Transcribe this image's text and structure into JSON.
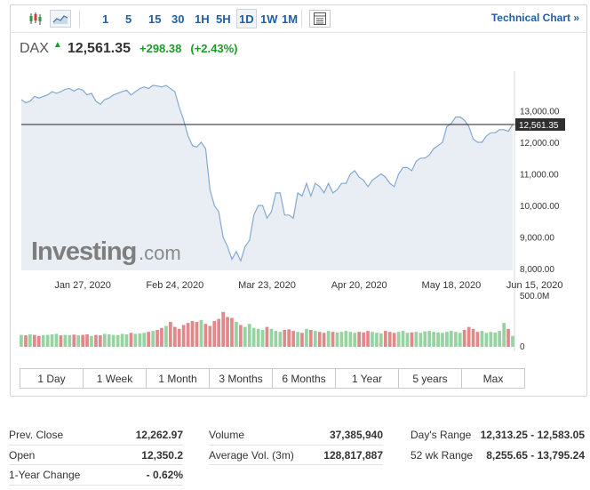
{
  "toolbar": {
    "chart_types": [
      {
        "icon": "candlestick-icon",
        "active": false
      },
      {
        "icon": "area-chart-icon",
        "active": true
      }
    ],
    "intervals": [
      "1",
      "5",
      "15",
      "30",
      "1H",
      "5H",
      "1D",
      "1W",
      "1M"
    ],
    "active_interval": "1D",
    "table_icon": "table-icon",
    "technical_chart_label": "Technical Chart »"
  },
  "quote": {
    "symbol": "DAX",
    "arrow": "▲",
    "price": "12,561.35",
    "change": "+298.38",
    "change_pct": "(+2.43%)",
    "up_color": "#1e9a2b"
  },
  "watermark": {
    "brand": "Investing",
    "suffix": ".com"
  },
  "chart_data": {
    "type": "area",
    "series": [
      {
        "values": [
          13350,
          13250,
          13300,
          13450,
          13400,
          13450,
          13500,
          13600,
          13550,
          13600,
          13680,
          13700,
          13620,
          13700,
          13650,
          13500,
          13550,
          13300,
          13200,
          13350,
          13400,
          13500,
          13550,
          13600,
          13650,
          13500,
          13600,
          13700,
          13750,
          13700,
          13800,
          13780,
          13750,
          13800,
          13700,
          13600,
          13100,
          12700,
          12200,
          11900,
          11850,
          12000,
          11800,
          10500,
          10000,
          9800,
          9000,
          8700,
          8300,
          8550,
          8250,
          8700,
          8900,
          9700,
          10000,
          10000,
          9600,
          9800,
          10400,
          10400,
          9700,
          9700,
          9600,
          10400,
          10300,
          10700,
          10300,
          10700,
          10600,
          10400,
          10700,
          10400,
          10500,
          10700,
          10700,
          11000,
          11100,
          10900,
          10800,
          10600,
          10800,
          10900,
          11000,
          10900,
          10700,
          10600,
          11000,
          11200,
          11200,
          11100,
          11400,
          11500,
          11500,
          11600,
          11800,
          11900,
          12000,
          12500,
          12600,
          12800,
          12800,
          12700,
          12500,
          12100,
          12000,
          12000,
          12200,
          12300,
          12300,
          12400,
          12400,
          12350,
          12561.35
        ]
      }
    ],
    "volume": {
      "values": [
        120,
        115,
        125,
        120,
        110,
        118,
        120,
        125,
        130,
        115,
        120,
        118,
        122,
        115,
        120,
        125,
        110,
        120,
        115,
        130,
        125,
        120,
        118,
        130,
        125,
        140,
        130,
        135,
        140,
        150,
        160,
        170,
        190,
        210,
        250,
        200,
        180,
        220,
        240,
        260,
        250,
        270,
        230,
        210,
        260,
        280,
        350,
        300,
        290,
        250,
        220,
        200,
        230,
        190,
        180,
        170,
        200,
        180,
        160,
        150,
        170,
        175,
        160,
        150,
        140,
        180,
        170,
        160,
        150,
        140,
        160,
        150,
        145,
        150,
        160,
        150,
        140,
        150,
        145,
        160,
        150,
        140,
        135,
        160,
        150,
        140,
        150,
        160,
        140,
        145,
        150,
        140,
        155,
        160,
        150,
        145,
        140,
        150,
        160,
        150,
        140,
        170,
        200,
        180,
        150,
        160,
        140,
        150,
        145,
        160,
        240,
        180,
        110
      ],
      "up_flags": [
        1,
        0,
        1,
        0,
        0,
        1,
        1,
        1,
        1,
        0,
        1,
        1,
        0,
        1,
        0,
        0,
        1,
        0,
        0,
        1,
        1,
        1,
        1,
        1,
        1,
        0,
        1,
        1,
        1,
        0,
        1,
        0,
        0,
        1,
        0,
        0,
        0,
        0,
        0,
        0,
        0,
        1,
        0,
        0,
        0,
        0,
        0,
        0,
        0,
        1,
        0,
        1,
        1,
        1,
        1,
        1,
        0,
        1,
        1,
        1,
        0,
        0,
        0,
        1,
        0,
        1,
        0,
        1,
        0,
        0,
        1,
        0,
        1,
        1,
        1,
        1,
        1,
        0,
        0,
        0,
        1,
        1,
        1,
        0,
        0,
        0,
        1,
        1,
        1,
        0,
        1,
        1,
        1,
        1,
        1,
        1,
        1,
        1,
        1,
        1,
        1,
        0,
        0,
        0,
        0,
        1,
        1,
        1,
        1,
        1,
        1,
        0,
        1
      ],
      "ymax_label": "500.0M",
      "zero_label": "0"
    },
    "yticks": [
      "13,000.00",
      "12,000.00",
      "11,000.00",
      "10,000.00",
      "9,000.00",
      "8,000.00"
    ],
    "ytick_values": [
      13000,
      12000,
      11000,
      10000,
      9000,
      8000
    ],
    "ylim": [
      7950,
      14250
    ],
    "xticks": [
      "Jan 27, 2020",
      "Feb 24, 2020",
      "Mar 23, 2020",
      "Apr 20, 2020",
      "May 18, 2020",
      "Jun 15, 2020"
    ],
    "xtick_index": [
      14,
      35,
      56,
      77,
      98,
      117
    ],
    "current_value": 12561.35,
    "current_label": "12,561.35",
    "line_color": "#84a9d1",
    "fill_color": "#e8eef3",
    "up_volume_color": "#96d3a0",
    "down_volume_color": "#e0888a",
    "grid": false
  },
  "range_buttons": [
    "1 Day",
    "1 Week",
    "1 Month",
    "3 Months",
    "6 Months",
    "1 Year",
    "5 years",
    "Max"
  ],
  "stats": {
    "col1": [
      {
        "label": "Prev. Close",
        "value": "12,262.97"
      },
      {
        "label": "Open",
        "value": "12,350.2"
      },
      {
        "label": "1-Year Change",
        "value": "- 0.62%"
      }
    ],
    "col2": [
      {
        "label": "Volume",
        "value": "37,385,940"
      },
      {
        "label": "Average Vol. (3m)",
        "value": "128,817,887"
      }
    ],
    "col3": [
      {
        "label": "Day's Range",
        "value": "12,313.25 - 12,583.05"
      },
      {
        "label": "52 wk Range",
        "value": "8,255.65 - 13,795.24"
      }
    ]
  }
}
